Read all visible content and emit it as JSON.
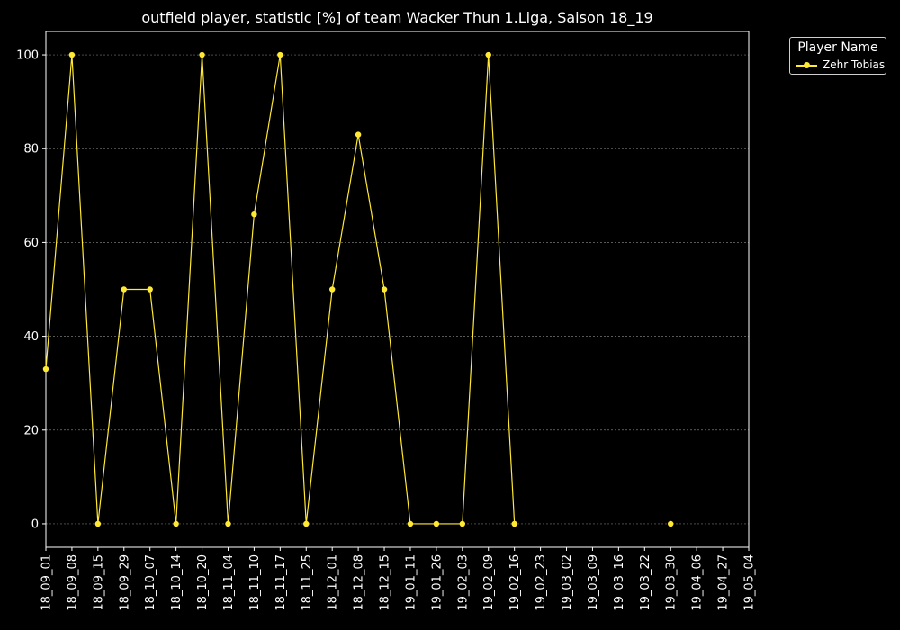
{
  "chart_data": {
    "type": "line",
    "title": "outfield player, statistic [%] of team Wacker Thun 1.Liga, Saison 18_19",
    "xlabel": "",
    "ylabel": "",
    "ylim": [
      -5,
      105
    ],
    "yticks": [
      0,
      20,
      40,
      60,
      80,
      100
    ],
    "grid": true,
    "legend_placement": "outside-top-right",
    "legend_title": "Player Name",
    "categories": [
      "18_09_01",
      "18_09_08",
      "18_09_15",
      "18_09_29",
      "18_10_07",
      "18_10_14",
      "18_10_20",
      "18_11_04",
      "18_11_10",
      "18_11_17",
      "18_11_25",
      "18_12_01",
      "18_12_08",
      "18_12_15",
      "19_01_11",
      "19_01_26",
      "19_02_03",
      "19_02_09",
      "19_02_16",
      "19_02_23",
      "19_03_02",
      "19_03_09",
      "19_03_16",
      "19_03_22",
      "19_03_30",
      "19_04_06",
      "19_04_27",
      "19_05_04"
    ],
    "series": [
      {
        "name": "Zehr Tobias",
        "color": "#ffe933",
        "values": [
          33,
          100,
          0,
          50,
          50,
          0,
          100,
          0,
          66,
          100,
          0,
          50,
          83,
          50,
          0,
          0,
          0,
          100,
          0,
          null,
          null,
          null,
          null,
          null,
          0,
          null,
          null,
          null
        ]
      }
    ]
  }
}
